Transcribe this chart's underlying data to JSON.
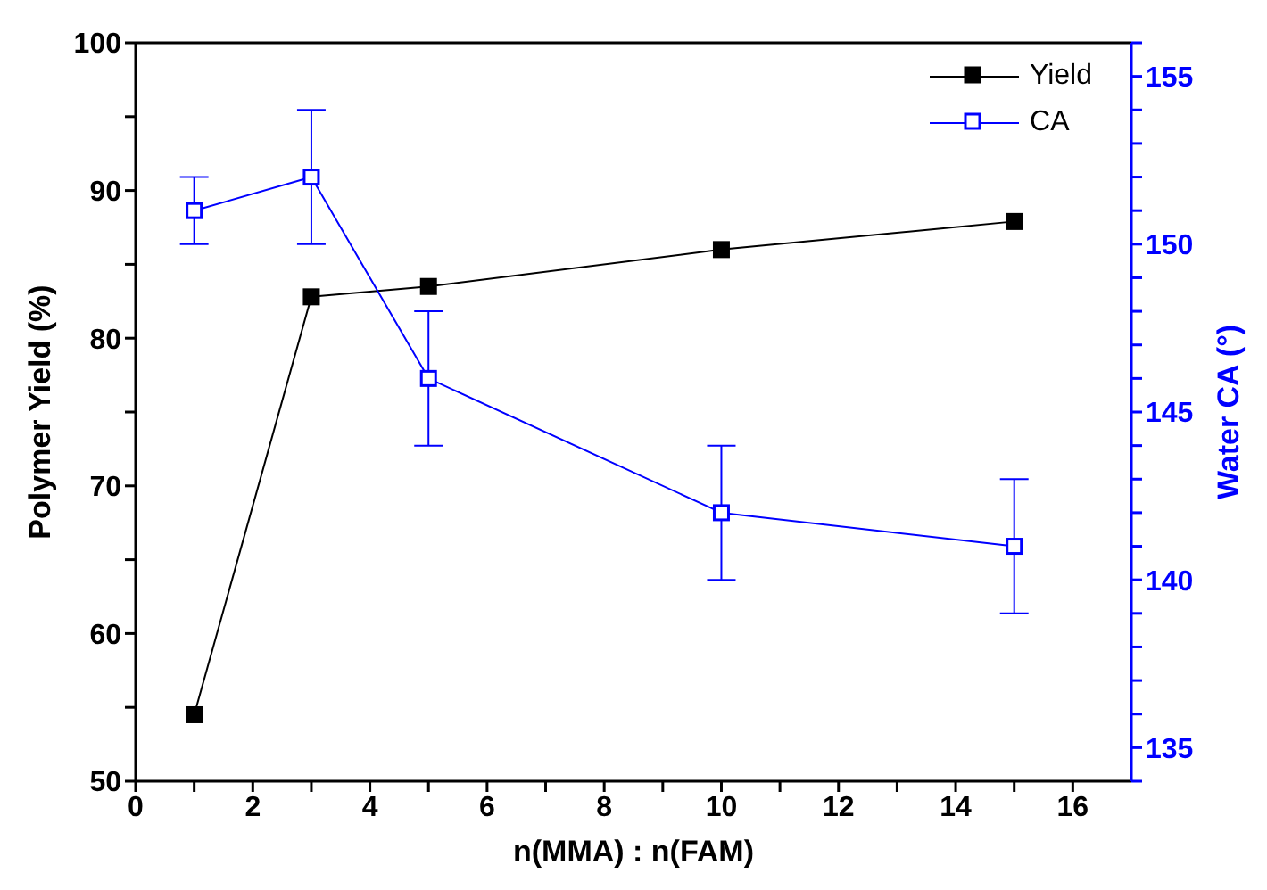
{
  "chart_data": {
    "type": "line",
    "xlabel": "n(MMA) : n(FAM)",
    "ylabel": "Polymer Yield (%)",
    "y2label": "Water CA (°)",
    "x": [
      1,
      3,
      5,
      10,
      15
    ],
    "series": [
      {
        "name": "Yield",
        "color": "#000000",
        "values": [
          54.5,
          82.8,
          83.5,
          86.0,
          87.9
        ]
      },
      {
        "name": "CA",
        "color": "#0000ff",
        "axis": "y2",
        "values": [
          151,
          152,
          146,
          142,
          141
        ],
        "errors": [
          1,
          2,
          2,
          2,
          2
        ]
      }
    ],
    "xlim": [
      0,
      17
    ],
    "xticks": [
      0,
      {
        "value": 1,
        "label": null
      },
      2,
      {
        "value": 3,
        "label": null
      },
      4,
      {
        "value": 5,
        "label": null
      },
      6,
      {
        "value": 7,
        "label": null
      },
      8,
      {
        "value": 9,
        "label": null
      },
      10,
      {
        "value": 11,
        "label": null
      },
      12,
      {
        "value": 13,
        "label": null
      },
      14,
      {
        "value": 15,
        "label": null
      },
      16
    ],
    "ylim": [
      50,
      100
    ],
    "yticks": [
      50,
      {
        "value": 55,
        "label": null
      },
      60,
      {
        "value": 65,
        "label": null
      },
      70,
      {
        "value": 75,
        "label": null
      },
      80,
      {
        "value": 85,
        "label": null
      },
      90,
      {
        "value": 95,
        "label": null
      },
      100
    ],
    "y2lim": [
      134,
      156
    ],
    "y2ticks": [
      {
        "value": 134,
        "label": null
      },
      135,
      {
        "value": 136,
        "label": null
      },
      {
        "value": 137,
        "label": null
      },
      {
        "value": 138,
        "label": null
      },
      {
        "value": 139,
        "label": null
      },
      140,
      {
        "value": 141,
        "label": null
      },
      {
        "value": 142,
        "label": null
      },
      {
        "value": 143,
        "label": null
      },
      {
        "value": 144,
        "label": null
      },
      145,
      {
        "value": 146,
        "label": null
      },
      {
        "value": 147,
        "label": null
      },
      {
        "value": 148,
        "label": null
      },
      {
        "value": 149,
        "label": null
      },
      150,
      {
        "value": 151,
        "label": null
      },
      {
        "value": 152,
        "label": null
      },
      {
        "value": 153,
        "label": null
      },
      {
        "value": 154,
        "label": null
      },
      155,
      {
        "value": 156,
        "label": null
      }
    ],
    "marker": "square",
    "line_style": "solid",
    "grid": false,
    "legend": "top right"
  }
}
